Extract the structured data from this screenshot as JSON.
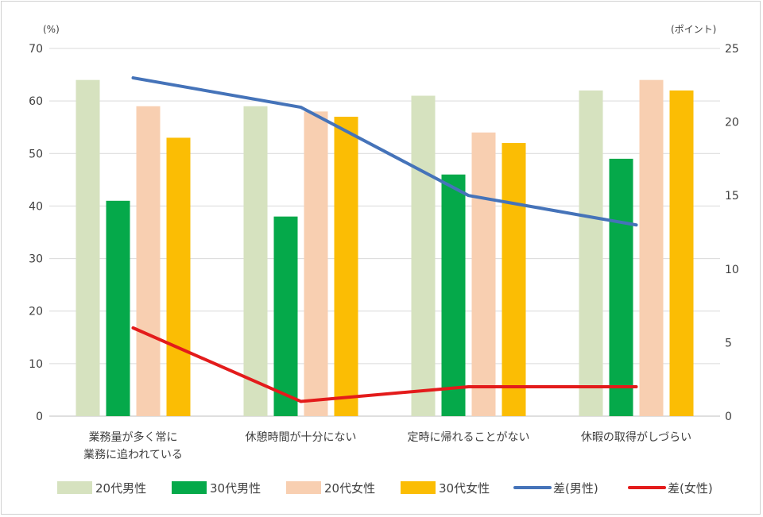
{
  "chart_data": {
    "type": "bar",
    "categories": [
      [
        "業務量が多く常に",
        "業務に追われている"
      ],
      [
        "休憩時間が十分にない"
      ],
      [
        "定時に帰れることがない"
      ],
      [
        "休暇の取得がしづらい"
      ]
    ],
    "left_axis": {
      "unit": "(%)",
      "ylim": [
        0,
        70
      ],
      "ticks": [
        0,
        10,
        20,
        30,
        40,
        50,
        60,
        70
      ]
    },
    "right_axis": {
      "unit": "(ポイント)",
      "ylim": [
        0,
        25
      ],
      "ticks": [
        0,
        5,
        10,
        15,
        20,
        25
      ]
    },
    "grid": true,
    "legend_position": "bottom",
    "series": [
      {
        "name": "20代男性",
        "kind": "bar",
        "axis": "left",
        "color": "#d6e2bf",
        "values": [
          64,
          59,
          61,
          62
        ]
      },
      {
        "name": "30代男性",
        "kind": "bar",
        "axis": "left",
        "color": "#05a94a",
        "values": [
          41,
          38,
          46,
          49
        ]
      },
      {
        "name": "20代女性",
        "kind": "bar",
        "axis": "left",
        "color": "#f8cfb1",
        "values": [
          59,
          58,
          54,
          64
        ]
      },
      {
        "name": "30代女性",
        "kind": "bar",
        "axis": "left",
        "color": "#fbbd04",
        "values": [
          53,
          57,
          52,
          62
        ]
      },
      {
        "name": "差(男性)",
        "kind": "line",
        "axis": "right",
        "color": "#4573b9",
        "values": [
          23,
          21,
          15,
          13
        ]
      },
      {
        "name": "差(女性)",
        "kind": "line",
        "axis": "right",
        "color": "#e31b1b",
        "values": [
          6,
          1,
          2,
          2
        ]
      }
    ]
  }
}
